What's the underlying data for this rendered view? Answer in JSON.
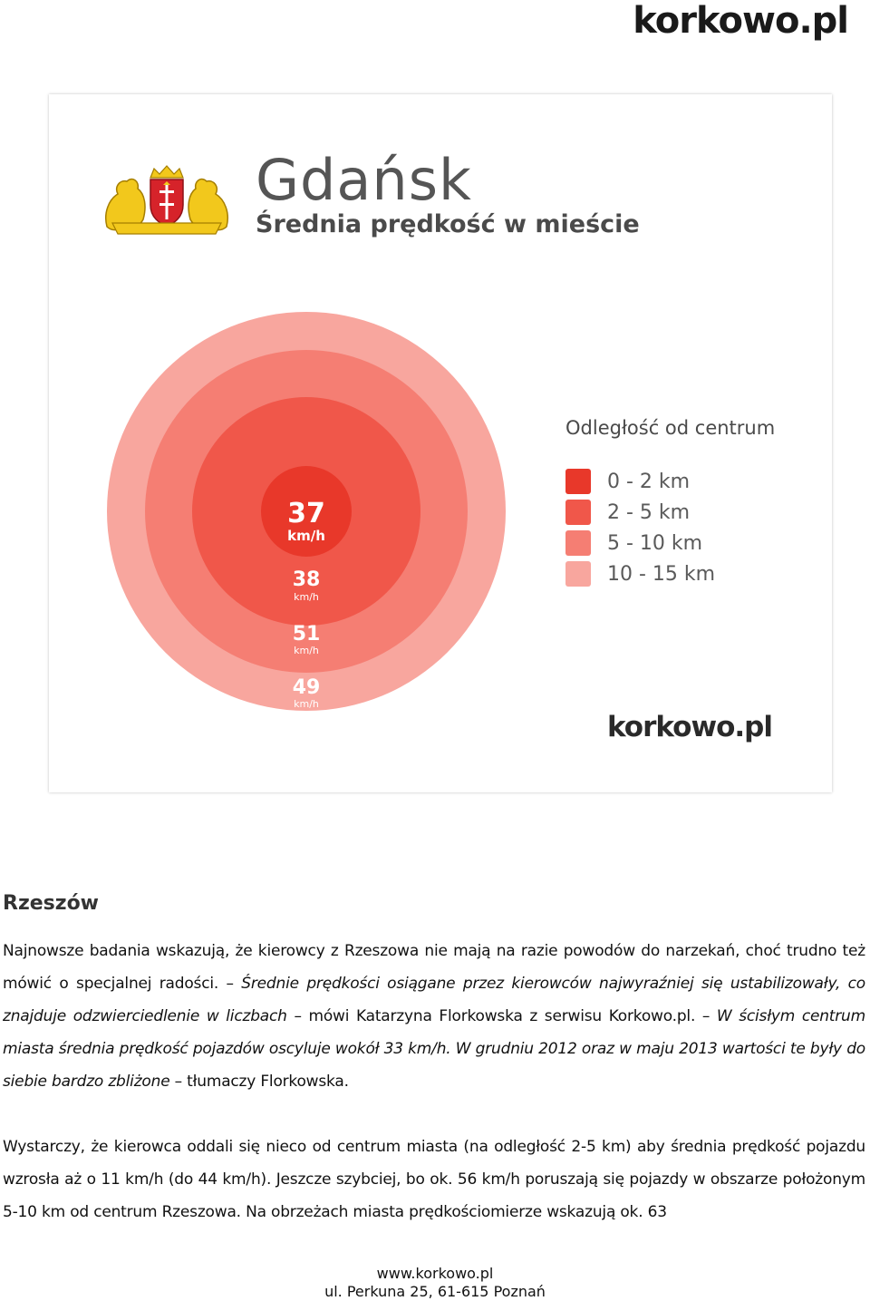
{
  "header": {
    "logo_text": "korkowo.pl"
  },
  "infographic": {
    "title": "Gdańsk",
    "subtitle": "Średnia prędkość w mieście",
    "crest_icon": "gdansk-coat-of-arms",
    "speeds": [
      {
        "value": "37",
        "unit": "km/h",
        "zone": "0 - 2 km",
        "color": "#e8382a"
      },
      {
        "value": "38",
        "unit": "km/h",
        "zone": "2 - 5 km",
        "color": "#f0574a"
      },
      {
        "value": "51",
        "unit": "km/h",
        "zone": "5 - 10 km",
        "color": "#f57e73"
      },
      {
        "value": "49",
        "unit": "km/h",
        "zone": "10 - 15 km",
        "color": "#f8a69e"
      }
    ],
    "legend": {
      "title": "Odległość od centrum",
      "items": [
        {
          "label": "0 - 2 km",
          "color": "#e8382a"
        },
        {
          "label": "2 - 5 km",
          "color": "#f0574a"
        },
        {
          "label": "5 - 10 km",
          "color": "#f57e73"
        },
        {
          "label": "10 - 15 km",
          "color": "#f8a69e"
        }
      ]
    },
    "logo_text": "korkowo.pl"
  },
  "article": {
    "heading": "Rzeszów",
    "p1": {
      "a": "Najnowsze badania wskazują, że kierowcy z Rzeszowa nie mają na razie powodów do narzekań, choć trudno też mówić o specjalnej radości. – ",
      "b": "Średnie prędkości osiągane przez kierowców najwyraźniej się ustabilizowały, co znajduje odzwierciedlenie w liczbach",
      "c": " – mówi Katarzyna Florkowska z serwisu Korkowo.pl. – ",
      "d": "W ścisłym centrum miasta średnia prędkość pojazdów oscyluje wokół 33 km/h. W grudniu 2012 oraz w maju 2013 wartości te były do siebie bardzo zbliżone",
      "e": " – tłumaczy Florkowska."
    },
    "p2": "Wystarczy, że kierowca oddali się nieco od centrum miasta (na odległość 2-5 km) aby średnia prędkość pojazdu wzrosła aż o 11 km/h (do 44 km/h). Jeszcze szybciej, bo ok. 56 km/h poruszają się pojazdy w obszarze położonym 5-10 km od centrum Rzeszowa. Na obrzeżach miasta prędkościomierze wskazują ok. 63"
  },
  "footer": {
    "url": "www.korkowo.pl",
    "address": "ul. Perkuna 25, 61-615 Poznań"
  }
}
